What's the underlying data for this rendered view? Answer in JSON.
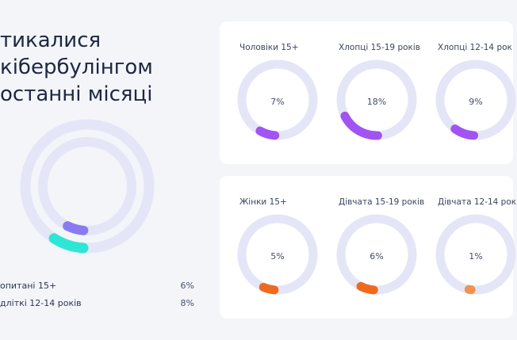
{
  "title_lines": [
    "тикалися",
    "кібербулінгом",
    "останні місяці"
  ],
  "chart_data": [
    {
      "type": "donut",
      "title": "тикалися кібербулінгом останні місяці",
      "series": [
        {
          "name": "опитані 15+",
          "value": 6,
          "label": "6%",
          "color": "#8a7af2"
        },
        {
          "name": "дліткі 12-14 років",
          "value": 8,
          "label": "8%",
          "color": "#2ee6d6"
        }
      ],
      "max": 100
    },
    {
      "type": "donut",
      "categories": [
        "Чоловіки 15+",
        "Хлопці 15-19 років",
        "Хлопці 12-14 рок"
      ],
      "values": [
        7,
        18,
        9
      ],
      "labels": [
        "7%",
        "18%",
        "9%"
      ],
      "color": "#a154f2",
      "max": 100
    },
    {
      "type": "donut",
      "categories": [
        "Жінки 15+",
        "Дівчата 15-19 років",
        "Дівчата 12-14 рок"
      ],
      "values": [
        5,
        6,
        1
      ],
      "labels": [
        "5%",
        "6%",
        "1%"
      ],
      "colors": [
        "#f06a1e",
        "#f06a1e",
        "#f39150"
      ],
      "max": 100
    }
  ],
  "colors": {
    "track": "#e4e6f7",
    "background": "#f3f5f9",
    "card": "#ffffff"
  }
}
